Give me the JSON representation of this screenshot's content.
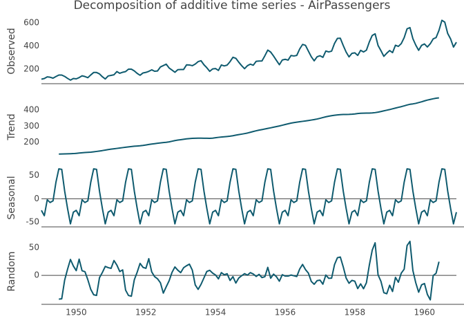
{
  "chart_data": {
    "type": "line",
    "title": "Decomposition of additive time series - AirPassengers",
    "color": "#0e5a6e",
    "x": [
      1949,
      1949.083,
      1949.167,
      1949.25,
      1949.333,
      1949.417,
      1949.5,
      1949.583,
      1949.667,
      1949.75,
      1949.833,
      1949.917,
      1950,
      1950.083,
      1950.167,
      1950.25,
      1950.333,
      1950.417,
      1950.5,
      1950.583,
      1950.667,
      1950.75,
      1950.833,
      1950.917,
      1951,
      1951.083,
      1951.167,
      1951.25,
      1951.333,
      1951.417,
      1951.5,
      1951.583,
      1951.667,
      1951.75,
      1951.833,
      1951.917,
      1952,
      1952.083,
      1952.167,
      1952.25,
      1952.333,
      1952.417,
      1952.5,
      1952.583,
      1952.667,
      1952.75,
      1952.833,
      1952.917,
      1953,
      1953.083,
      1953.167,
      1953.25,
      1953.333,
      1953.417,
      1953.5,
      1953.583,
      1953.667,
      1953.75,
      1953.833,
      1953.917,
      1954,
      1954.083,
      1954.167,
      1954.25,
      1954.333,
      1954.417,
      1954.5,
      1954.583,
      1954.667,
      1954.75,
      1954.833,
      1954.917,
      1955,
      1955.083,
      1955.167,
      1955.25,
      1955.333,
      1955.417,
      1955.5,
      1955.583,
      1955.667,
      1955.75,
      1955.833,
      1955.917,
      1956,
      1956.083,
      1956.167,
      1956.25,
      1956.333,
      1956.417,
      1956.5,
      1956.583,
      1956.667,
      1956.75,
      1956.833,
      1956.917,
      1957,
      1957.083,
      1957.167,
      1957.25,
      1957.333,
      1957.417,
      1957.5,
      1957.583,
      1957.667,
      1957.75,
      1957.833,
      1957.917,
      1958,
      1958.083,
      1958.167,
      1958.25,
      1958.333,
      1958.417,
      1958.5,
      1958.583,
      1958.667,
      1958.75,
      1958.833,
      1958.917,
      1959,
      1959.083,
      1959.167,
      1959.25,
      1959.333,
      1959.417,
      1959.5,
      1959.583,
      1959.667,
      1959.75,
      1959.833,
      1959.917,
      1960,
      1960.083,
      1960.167,
      1960.25,
      1960.333,
      1960.417,
      1960.5,
      1960.583,
      1960.667,
      1960.75,
      1960.833,
      1960.917
    ],
    "xlim": [
      1949,
      1960.917
    ],
    "xticks": [
      1950,
      1952,
      1954,
      1956,
      1958,
      1960
    ],
    "panels": [
      {
        "ylabel": "Observed",
        "ylim": [
          73,
          636
        ],
        "yticks": [
          200,
          400,
          600
        ],
        "zeroline": false,
        "axis_line": true,
        "values": [
          112,
          118,
          132,
          129,
          121,
          135,
          148,
          148,
          136,
          119,
          104,
          118,
          115,
          126,
          141,
          135,
          125,
          149,
          170,
          170,
          158,
          133,
          114,
          140,
          145,
          150,
          178,
          163,
          172,
          178,
          199,
          199,
          184,
          162,
          146,
          166,
          171,
          180,
          193,
          181,
          183,
          218,
          230,
          242,
          209,
          191,
          172,
          194,
          196,
          196,
          236,
          235,
          229,
          243,
          264,
          272,
          237,
          211,
          180,
          201,
          204,
          188,
          235,
          227,
          234,
          264,
          302,
          293,
          259,
          229,
          203,
          229,
          242,
          233,
          267,
          269,
          270,
          315,
          364,
          347,
          312,
          274,
          237,
          278,
          284,
          277,
          317,
          313,
          318,
          374,
          413,
          405,
          355,
          306,
          271,
          306,
          315,
          301,
          356,
          348,
          355,
          422,
          465,
          467,
          404,
          347,
          305,
          336,
          340,
          318,
          362,
          348,
          363,
          435,
          491,
          505,
          404,
          359,
          310,
          337,
          360,
          342,
          406,
          396,
          420,
          472,
          548,
          559,
          463,
          407,
          362,
          405,
          417,
          391,
          419,
          461,
          472,
          535,
          622,
          606,
          508,
          461,
          390,
          432
        ]
      },
      {
        "ylabel": "Trend",
        "ylim": [
          100,
          490
        ],
        "yticks": [
          200,
          300,
          400
        ],
        "zeroline": false,
        "axis_line": false,
        "values": [
          null,
          null,
          null,
          null,
          null,
          null,
          126.79,
          127.25,
          127.96,
          128.58,
          129,
          129.75,
          131.25,
          133.08,
          134.92,
          136.42,
          137.42,
          138.75,
          140.92,
          143.17,
          145.71,
          148.42,
          151.54,
          154.71,
          157.13,
          159.54,
          161.83,
          164.13,
          166.67,
          169.08,
          171.25,
          173.58,
          175.46,
          176.83,
          178.04,
          180.17,
          183.13,
          186.21,
          189.04,
          191.29,
          193.58,
          195.83,
          198.04,
          199.75,
          202.21,
          206.25,
          210.42,
          213.38,
          215.83,
          218.5,
          220.92,
          222.92,
          224.08,
          224.71,
          225.33,
          225.33,
          224.96,
          224.58,
          224.46,
          225.54,
          228,
          230.46,
          232.25,
          233.92,
          235.63,
          237.75,
          240.5,
          243.96,
          247.17,
          250.25,
          253.5,
          257.13,
          261.83,
          266.67,
          271.13,
          275.21,
          278.5,
          281.96,
          285.75,
          289.33,
          293.25,
          297.17,
          301,
          305.46,
          309.96,
          314.42,
          318.63,
          321.75,
          324.5,
          327.08,
          329.54,
          331.83,
          334.46,
          337.54,
          340.54,
          344.08,
          348.25,
          353,
          357.63,
          361.38,
          364.5,
          367.17,
          369.46,
          371.21,
          372.17,
          372.42,
          372.75,
          373.63,
          375.25,
          377.92,
          379.5,
          380,
          380.71,
          380.96,
          381.83,
          383.67,
          386.5,
          390.33,
          394.71,
          398.63,
          402.54,
          407.17,
          411.88,
          416.33,
          420.5,
          425.5,
          430.71,
          435.13,
          437.71,
          440.96,
          445.83,
          450.63,
          456.33,
          461.38,
          465.21,
          469.33,
          472.75,
          475.04,
          null,
          null,
          null,
          null,
          null,
          null
        ]
      },
      {
        "ylabel": "Seasonal",
        "ylim": [
          -60,
          64
        ],
        "yticks": [
          -50,
          0,
          50
        ],
        "zeroline": true,
        "axis_line": true,
        "values": [
          -24.75,
          -36.19,
          -2.24,
          -8.04,
          -4.51,
          35.4,
          63.83,
          62.82,
          16.52,
          -20.64,
          -53.59,
          -28.62,
          -24.75,
          -36.19,
          -2.24,
          -8.04,
          -4.51,
          35.4,
          63.83,
          62.82,
          16.52,
          -20.64,
          -53.59,
          -28.62,
          -24.75,
          -36.19,
          -2.24,
          -8.04,
          -4.51,
          35.4,
          63.83,
          62.82,
          16.52,
          -20.64,
          -53.59,
          -28.62,
          -24.75,
          -36.19,
          -2.24,
          -8.04,
          -4.51,
          35.4,
          63.83,
          62.82,
          16.52,
          -20.64,
          -53.59,
          -28.62,
          -24.75,
          -36.19,
          -2.24,
          -8.04,
          -4.51,
          35.4,
          63.83,
          62.82,
          16.52,
          -20.64,
          -53.59,
          -28.62,
          -24.75,
          -36.19,
          -2.24,
          -8.04,
          -4.51,
          35.4,
          63.83,
          62.82,
          16.52,
          -20.64,
          -53.59,
          -28.62,
          -24.75,
          -36.19,
          -2.24,
          -8.04,
          -4.51,
          35.4,
          63.83,
          62.82,
          16.52,
          -20.64,
          -53.59,
          -28.62,
          -24.75,
          -36.19,
          -2.24,
          -8.04,
          -4.51,
          35.4,
          63.83,
          62.82,
          16.52,
          -20.64,
          -53.59,
          -28.62,
          -24.75,
          -36.19,
          -2.24,
          -8.04,
          -4.51,
          35.4,
          63.83,
          62.82,
          16.52,
          -20.64,
          -53.59,
          -28.62,
          -24.75,
          -36.19,
          -2.24,
          -8.04,
          -4.51,
          35.4,
          63.83,
          62.82,
          16.52,
          -20.64,
          -53.59,
          -28.62,
          -24.75,
          -36.19,
          -2.24,
          -8.04,
          -4.51,
          35.4,
          63.83,
          62.82,
          16.52,
          -20.64,
          -53.59,
          -28.62,
          -24.75,
          -36.19,
          -2.24,
          -8.04,
          -4.51,
          35.4,
          63.83,
          62.82,
          16.52,
          -20.64,
          -53.59,
          -28.62
        ]
      },
      {
        "ylabel": "Random",
        "ylim": [
          -52,
          66
        ],
        "yticks": [
          0,
          50
        ],
        "zeroline": true,
        "axis_line": true,
        "values": [
          null,
          null,
          null,
          null,
          null,
          null,
          -42.62,
          -42.07,
          -8.48,
          11.06,
          28.59,
          16.87,
          8.5,
          29.11,
          8.32,
          6.62,
          -7.91,
          -25.15,
          -34.75,
          -35.99,
          -4.23,
          5.22,
          16.05,
          13.91,
          12.62,
          26.65,
          18.41,
          6.91,
          9.84,
          -26.48,
          -36.08,
          -37.4,
          -7.98,
          5.81,
          21.55,
          14.45,
          12.62,
          29.98,
          6.2,
          -2.25,
          -6.07,
          -13.23,
          -31.87,
          -20.57,
          -9.73,
          5.39,
          15.17,
          9.24,
          4.92,
          13.69,
          17.32,
          20.12,
          9.43,
          -17.11,
          -25.16,
          -16.15,
          -4.48,
          7.06,
          9.13,
          4.08,
          0.75,
          -6.27,
          4.99,
          1.12,
          2.88,
          -9.15,
          -2.33,
          -13.78,
          -4.69,
          -0.61,
          3.09,
          0.49,
          4.92,
          2.52,
          -1.89,
          1.83,
          -3.99,
          -2.36,
          14.42,
          -5.15,
          2.23,
          -2.53,
          -10.41,
          1.16,
          -1.21,
          -1.23,
          0.61,
          -0.71,
          -1.99,
          11.52,
          19.63,
          10.35,
          4.02,
          -10.9,
          -15.95,
          -9.46,
          -8.5,
          -15.81,
          0.61,
          -5.34,
          -4.99,
          19.43,
          31.71,
          32.97,
          15.31,
          -4.78,
          -14.16,
          -9.01,
          -10.5,
          -23.73,
          -15.26,
          -23.96,
          -13.2,
          18.64,
          45.34,
          58.51,
          0.98,
          -10.69,
          -31.12,
          -33.01,
          -17.79,
          -28.98,
          -3.64,
          -12.29,
          4.01,
          11.1,
          53.46,
          61.05,
          8.77,
          -13.32,
          -30.24,
          -17.01,
          -14.58,
          -34.19,
          -43.97,
          -0.29,
          3.76,
          24.56,
          null,
          null,
          null,
          null,
          null,
          null
        ]
      }
    ]
  }
}
